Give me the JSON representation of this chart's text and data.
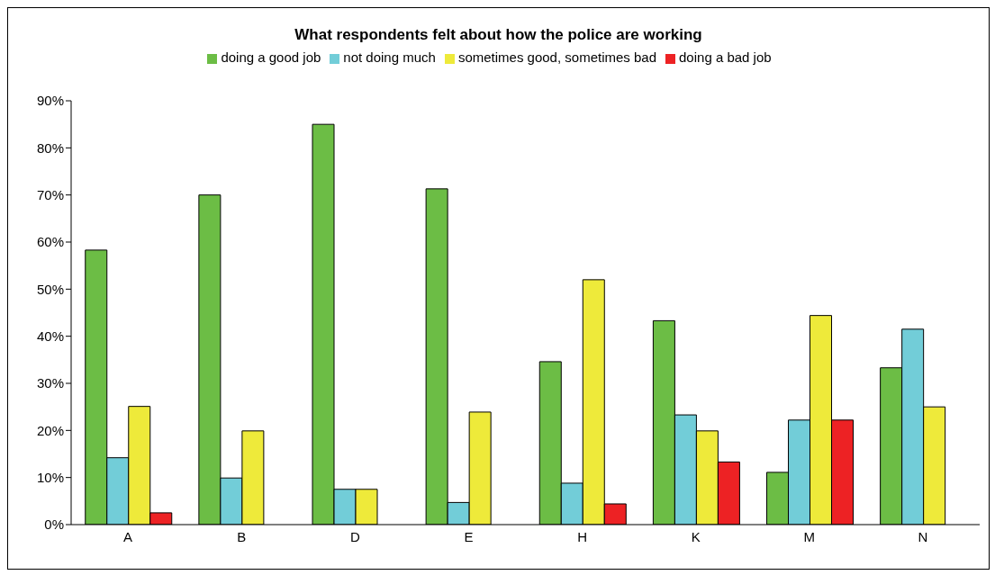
{
  "chart_data": {
    "type": "bar",
    "title": "What respondents felt about how the police are working",
    "categories": [
      "A",
      "B",
      "D",
      "E",
      "H",
      "K",
      "M",
      "N"
    ],
    "series": [
      {
        "name": "doing a good job",
        "color": "#6cbd45",
        "values": [
          58.3,
          70,
          85,
          71.3,
          34.6,
          43.3,
          11.1,
          33.3
        ]
      },
      {
        "name": "not doing much",
        "color": "#72cdd8",
        "values": [
          14.2,
          9.9,
          7.5,
          4.7,
          8.8,
          23.3,
          22.2,
          41.5
        ]
      },
      {
        "name": "sometimes good, sometimes bad",
        "color": "#eeea3a",
        "values": [
          25.1,
          19.9,
          7.5,
          23.9,
          52,
          19.9,
          44.4,
          25
        ]
      },
      {
        "name": "doing a bad job",
        "color": "#ed2224",
        "values": [
          2.5,
          null,
          null,
          null,
          4.4,
          13.3,
          22.2,
          null
        ]
      }
    ],
    "ylim": [
      0,
      90
    ],
    "yticks": [
      {
        "value": 0,
        "label": "0%"
      },
      {
        "value": 10,
        "label": "10%"
      },
      {
        "value": 20,
        "label": "20%"
      },
      {
        "value": 30,
        "label": "30%"
      },
      {
        "value": 40,
        "label": "40%"
      },
      {
        "value": 50,
        "label": "50%"
      },
      {
        "value": 60,
        "label": "60%"
      },
      {
        "value": 70,
        "label": "70%"
      },
      {
        "value": 80,
        "label": "80%"
      },
      {
        "value": 90,
        "label": "90%"
      }
    ],
    "grid": false,
    "legend": "top"
  }
}
